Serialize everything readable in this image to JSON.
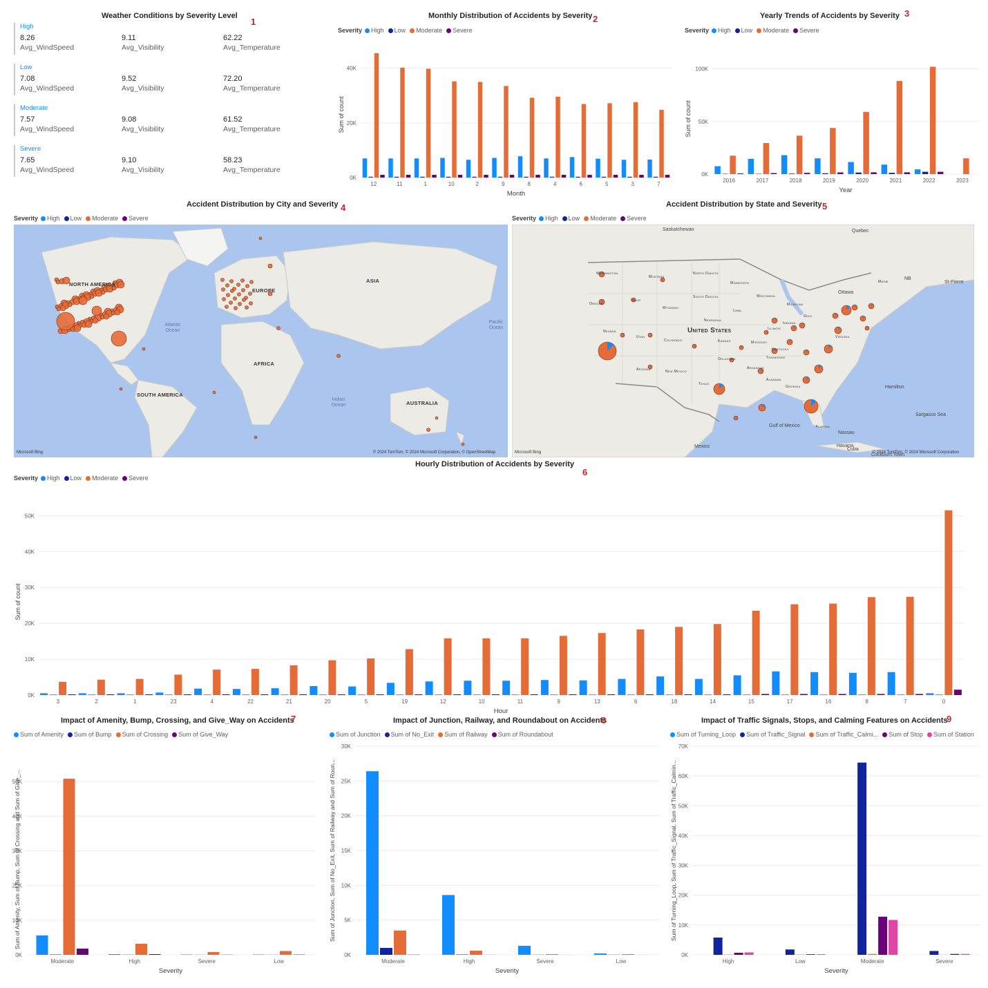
{
  "colors": {
    "High": "#118dff",
    "Low": "#12239e",
    "Moderate": "#e66c37",
    "Severe": "#6b007b",
    "Station": "#e044a7",
    "title_number": "#c0282a"
  },
  "weather": {
    "title": "Weather Conditions by Severity Level",
    "number": "1",
    "cards": [
      {
        "category": "High",
        "wind": "8.26",
        "visibility": "9.11",
        "temperature": "62.22"
      },
      {
        "category": "Low",
        "wind": "7.08",
        "visibility": "9.52",
        "temperature": "72.20"
      },
      {
        "category": "Moderate",
        "wind": "7.57",
        "visibility": "9.08",
        "temperature": "61.52"
      },
      {
        "category": "Severe",
        "wind": "7.65",
        "visibility": "9.10",
        "temperature": "58.23"
      }
    ],
    "labels": {
      "wind": "Avg_WindSpeed",
      "visibility": "Avg_Visibility",
      "temperature": "Avg_Temperature"
    }
  },
  "legend_severity": {
    "title": "Severity",
    "items": [
      "High",
      "Low",
      "Moderate",
      "Severe"
    ]
  },
  "monthly": {
    "title": "Monthly Distribution of Accidents by Severity",
    "number": "2",
    "chart_data": {
      "type": "bar",
      "xlabel": "Month",
      "ylabel": "Sum of count",
      "ylim": [
        0,
        46000
      ],
      "yticks": [
        0,
        20000,
        40000
      ],
      "ytick_labels": [
        "0K",
        "20K",
        "40K"
      ],
      "categories": [
        "12",
        "11",
        "1",
        "10",
        "2",
        "9",
        "8",
        "4",
        "6",
        "5",
        "3",
        "7"
      ],
      "series": [
        {
          "name": "High",
          "values": [
            7000,
            7000,
            7000,
            7200,
            6500,
            7200,
            7800,
            7000,
            7500,
            6900,
            6500,
            6600
          ]
        },
        {
          "name": "Low",
          "values": [
            300,
            300,
            300,
            300,
            300,
            300,
            300,
            300,
            300,
            300,
            300,
            300
          ]
        },
        {
          "name": "Moderate",
          "values": [
            45500,
            40200,
            39800,
            35200,
            35000,
            33500,
            29200,
            29600,
            26900,
            27200,
            27600,
            24800
          ]
        },
        {
          "name": "Severe",
          "values": [
            1000,
            1000,
            1000,
            1000,
            1000,
            1000,
            1000,
            1000,
            1000,
            1000,
            1000,
            1000
          ]
        }
      ]
    }
  },
  "yearly": {
    "title": "Yearly Trends of Accidents by Severity",
    "number": "3",
    "chart_data": {
      "type": "bar",
      "xlabel": "Year",
      "ylabel": "Sum of count",
      "ylim": [
        0,
        105000
      ],
      "yticks": [
        0,
        50000,
        100000
      ],
      "ytick_labels": [
        "0K",
        "50K",
        "100K"
      ],
      "categories": [
        "2016",
        "2017",
        "2018",
        "2019",
        "2020",
        "2021",
        "2022",
        "2023"
      ],
      "series": [
        {
          "name": "High",
          "values": [
            7500,
            14500,
            18000,
            15000,
            11500,
            9000,
            4500,
            0
          ]
        },
        {
          "name": "Low",
          "values": [
            300,
            300,
            500,
            800,
            1500,
            1200,
            2200,
            0
          ]
        },
        {
          "name": "Moderate",
          "values": [
            17500,
            29500,
            36500,
            43800,
            59000,
            88500,
            102000,
            15000
          ]
        },
        {
          "name": "Severe",
          "values": [
            700,
            1000,
            1200,
            1600,
            1700,
            1700,
            2200,
            0
          ]
        }
      ]
    }
  },
  "city_map": {
    "title": "Accident Distribution by City and Severity",
    "number": "4",
    "labels": [
      "NORTH AMERICA",
      "EUROPE",
      "ASIA",
      "AFRICA",
      "SOUTH AMERICA",
      "AUSTRALIA"
    ],
    "oceans": [
      "Atlantic Ocean",
      "Pacific Ocean",
      "Indian Ocean"
    ],
    "credit_left": "Microsoft Bing",
    "credit_right": "© 2024 TomTom, © 2024 Microsoft Corporation, © OpenStreetMap"
  },
  "state_map": {
    "title": "Accident Distribution by State and Severity",
    "number": "5",
    "country": "United States",
    "places": [
      "Ottawa",
      "Hamilton",
      "Nassau",
      "Havana",
      "Mexico",
      "Gulf of Mexico",
      "Sargasso Sea",
      "St-Pierre",
      "Quebec",
      "Saskatchewan",
      "Cockburn Town",
      "Cuba",
      "NB"
    ],
    "states": [
      "North Dakota",
      "Minnesota",
      "Wisconsin",
      "Michigan",
      "South Dakota",
      "Montana",
      "Wyoming",
      "Nebraska",
      "Iowa",
      "Illinois",
      "Indiana",
      "Ohio",
      "Kansas",
      "Missouri",
      "Kentucky",
      "Oklahoma",
      "Arkansas",
      "Tennessee",
      "Alabama",
      "Georgia",
      "Texas",
      "Colorado",
      "Utah",
      "Nevada",
      "Arizona",
      "New Mexico",
      "Oregon",
      "Idaho",
      "Washington",
      "Florida",
      "Maine",
      "Virginia"
    ],
    "credit_left": "Microsoft Bing",
    "credit_right": "© 2024 TomTom, © 2024 Microsoft Corporation"
  },
  "hourly": {
    "title": "Hourly Distribution of Accidents by Severity",
    "number": "6",
    "chart_data": {
      "type": "bar",
      "xlabel": "Hour",
      "ylabel": "Sum of count",
      "ylim": [
        0,
        52000
      ],
      "yticks": [
        0,
        10000,
        20000,
        30000,
        40000,
        50000
      ],
      "ytick_labels": [
        "0K",
        "10K",
        "20K",
        "30K",
        "40K",
        "50K"
      ],
      "categories": [
        "3",
        "2",
        "1",
        "23",
        "4",
        "22",
        "21",
        "20",
        "5",
        "19",
        "12",
        "10",
        "11",
        "9",
        "13",
        "6",
        "18",
        "14",
        "15",
        "17",
        "16",
        "8",
        "7",
        "0"
      ],
      "series": [
        {
          "name": "High",
          "values": [
            500,
            500,
            500,
            700,
            1800,
            1700,
            1900,
            2500,
            2400,
            3400,
            3800,
            4000,
            4000,
            4200,
            4100,
            4500,
            5200,
            4500,
            5500,
            6600,
            6400,
            6200,
            6400,
            500
          ]
        },
        {
          "name": "Low",
          "values": [
            100,
            100,
            100,
            100,
            100,
            100,
            100,
            100,
            100,
            100,
            100,
            100,
            100,
            100,
            100,
            100,
            100,
            100,
            100,
            100,
            100,
            100,
            100,
            100
          ]
        },
        {
          "name": "Moderate",
          "values": [
            3700,
            4300,
            4500,
            5700,
            7100,
            7300,
            8300,
            9700,
            10200,
            12800,
            15800,
            15800,
            15800,
            16500,
            17300,
            18300,
            19000,
            19800,
            23500,
            25300,
            25500,
            27300,
            27400,
            51500
          ]
        },
        {
          "name": "Severe",
          "values": [
            200,
            200,
            200,
            200,
            200,
            200,
            200,
            200,
            200,
            200,
            200,
            200,
            200,
            200,
            200,
            200,
            200,
            200,
            300,
            300,
            300,
            300,
            300,
            1500
          ]
        }
      ]
    }
  },
  "amenity": {
    "title": "Impact of Amenity, Bump, Crossing, and Give_Way on Accidents",
    "number": "7",
    "chart_data": {
      "type": "bar",
      "xlabel": "Severity",
      "ylabel": "Sum of Amenity, Sum of Bump, Sum of Crossing and Sum of Give_...",
      "ylim": [
        0,
        55000
      ],
      "yticks": [
        0,
        10000,
        20000,
        30000,
        40000,
        50000
      ],
      "ytick_labels": [
        "0K",
        "10K",
        "20K",
        "30K",
        "40K",
        "50K"
      ],
      "categories": [
        "Moderate",
        "High",
        "Severe",
        "Low"
      ],
      "series": [
        {
          "name": "Sum of Amenity",
          "values": [
            5600,
            200,
            100,
            100
          ]
        },
        {
          "name": "Sum of Bump",
          "values": [
            100,
            50,
            30,
            30
          ]
        },
        {
          "name": "Sum of Crossing",
          "values": [
            50800,
            3200,
            800,
            1100
          ]
        },
        {
          "name": "Sum of Give_Way",
          "values": [
            1800,
            200,
            50,
            80
          ]
        }
      ]
    }
  },
  "junction": {
    "title": "Impact of Junction, Railway, and Roundabout on Accidents",
    "number": "8",
    "chart_data": {
      "type": "bar",
      "xlabel": "Severity",
      "ylabel": "Sum of Junction, Sum of No_Exit, Sum of Railway and Sum of Roun...",
      "ylim": [
        0,
        30000
      ],
      "yticks": [
        0,
        5000,
        10000,
        15000,
        20000,
        25000,
        30000
      ],
      "ytick_labels": [
        "0K",
        "5K",
        "10K",
        "15K",
        "20K",
        "25K",
        "30K"
      ],
      "categories": [
        "Moderate",
        "High",
        "Severe",
        "Low"
      ],
      "series": [
        {
          "name": "Sum of Junction",
          "values": [
            26400,
            8600,
            1300,
            200
          ]
        },
        {
          "name": "Sum of No_Exit",
          "values": [
            1000,
            50,
            20,
            20
          ]
        },
        {
          "name": "Sum of Railway",
          "values": [
            3500,
            600,
            100,
            100
          ]
        },
        {
          "name": "Sum of Roundabout",
          "values": [
            30,
            10,
            5,
            5
          ]
        }
      ]
    }
  },
  "signals": {
    "title": "Impact of Traffic Signals, Stops, and Calming Features on Accidents",
    "number": "9",
    "chart_data": {
      "type": "bar",
      "xlabel": "Severity",
      "ylabel": "Sum of Turning_Loop, Sum of Traffic_Signal, Sum of Traffic_Calmin...",
      "ylim": [
        0,
        70000
      ],
      "yticks": [
        0,
        10000,
        20000,
        30000,
        40000,
        50000,
        60000,
        70000
      ],
      "ytick_labels": [
        "0K",
        "10K",
        "20K",
        "30K",
        "40K",
        "50K",
        "60K",
        "70K"
      ],
      "categories": [
        "High",
        "Low",
        "Moderate",
        "Severe"
      ],
      "series": [
        {
          "name": "Sum of Turning_Loop",
          "values": [
            0,
            0,
            0,
            0
          ]
        },
        {
          "name": "Sum of Traffic_Signal",
          "values": [
            5800,
            1800,
            64500,
            1300
          ]
        },
        {
          "name": "Sum of Traffic_Calmi...",
          "values": [
            100,
            100,
            300,
            50
          ]
        },
        {
          "name": "Sum of Stop",
          "values": [
            700,
            200,
            12800,
            300
          ]
        },
        {
          "name": "Sum of Station",
          "values": [
            800,
            200,
            11700,
            300
          ]
        }
      ]
    }
  }
}
